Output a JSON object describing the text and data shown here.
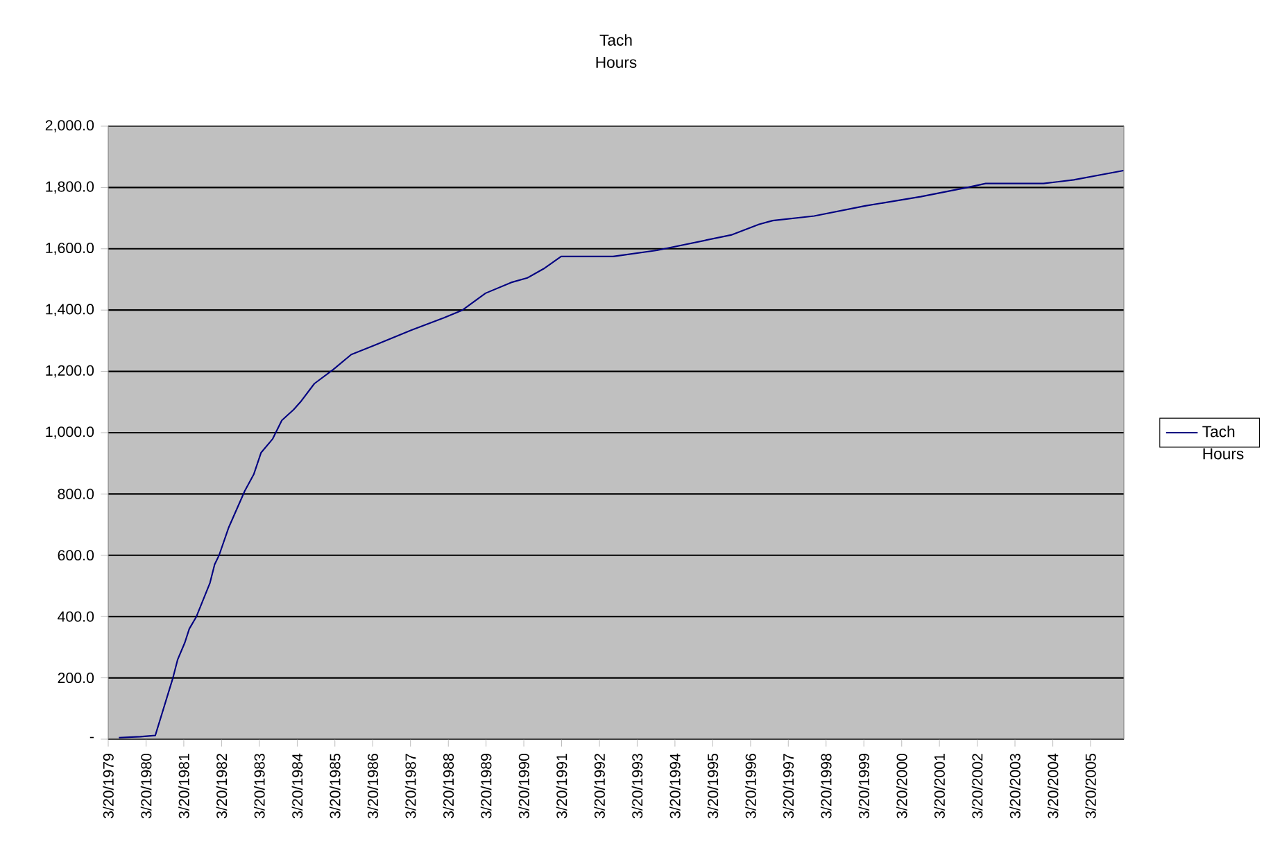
{
  "chart_data": {
    "type": "line",
    "title": "Tach Hours",
    "x": [
      "1979-07-01",
      "1980-01-25",
      "1980-06-17",
      "1980-12-05",
      "1981-01-20",
      "1981-03-30",
      "1981-05-12",
      "1981-07-20",
      "1981-11-28",
      "1982-01-12",
      "1982-02-24",
      "1982-05-27",
      "1982-10-30",
      "1983-01-26",
      "1983-04-06",
      "1983-07-27",
      "1983-10-23",
      "1984-02-14",
      "1984-04-20",
      "1984-09-02",
      "1985-02-28",
      "1985-08-25",
      "1986-04-05",
      "1987-03-30",
      "1988-02-07",
      "1988-08-04",
      "1989-03-15",
      "1989-11-17",
      "1990-04-23",
      "1990-09-28",
      "1991-03-15",
      "1992-07-30",
      "1993-09-27",
      "1994-09-20",
      "1995-09-13",
      "1996-06-10",
      "1996-10-20",
      "1997-11-25",
      "1999-04-02",
      "2000-09-20",
      "2001-12-13",
      "2002-06-10",
      "2003-12-20",
      "2004-10-08",
      "2006-02-01"
    ],
    "series": [
      {
        "name": "Tach Hours",
        "color": "#000080",
        "values": [
          5,
          8,
          12,
          200,
          260,
          315,
          360,
          400,
          510,
          570,
          600,
          690,
          810,
          865,
          935,
          980,
          1040,
          1075,
          1100,
          1160,
          1205,
          1255,
          1285,
          1335,
          1375,
          1400,
          1455,
          1490,
          1505,
          1535,
          1575,
          1575,
          1595,
          1620,
          1645,
          1680,
          1692,
          1707,
          1740,
          1770,
          1800,
          1813,
          1813,
          1825,
          1855
        ]
      }
    ],
    "xlim": [
      "1979-03-20",
      "2006-02-05"
    ],
    "xticks": [
      {
        "value": "1979-03-20",
        "label": "3/20/1979"
      },
      {
        "value": "1980-03-20",
        "label": "3/20/1980"
      },
      {
        "value": "1981-03-20",
        "label": "3/20/1981"
      },
      {
        "value": "1982-03-20",
        "label": "3/20/1982"
      },
      {
        "value": "1983-03-20",
        "label": "3/20/1983"
      },
      {
        "value": "1984-03-20",
        "label": "3/20/1984"
      },
      {
        "value": "1985-03-20",
        "label": "3/20/1985"
      },
      {
        "value": "1986-03-20",
        "label": "3/20/1986"
      },
      {
        "value": "1987-03-20",
        "label": "3/20/1987"
      },
      {
        "value": "1988-03-20",
        "label": "3/20/1988"
      },
      {
        "value": "1989-03-20",
        "label": "3/20/1989"
      },
      {
        "value": "1990-03-20",
        "label": "3/20/1990"
      },
      {
        "value": "1991-03-20",
        "label": "3/20/1991"
      },
      {
        "value": "1992-03-20",
        "label": "3/20/1992"
      },
      {
        "value": "1993-03-20",
        "label": "3/20/1993"
      },
      {
        "value": "1994-03-20",
        "label": "3/20/1994"
      },
      {
        "value": "1995-03-20",
        "label": "3/20/1995"
      },
      {
        "value": "1996-03-20",
        "label": "3/20/1996"
      },
      {
        "value": "1997-03-20",
        "label": "3/20/1997"
      },
      {
        "value": "1998-03-20",
        "label": "3/20/1998"
      },
      {
        "value": "1999-03-20",
        "label": "3/20/1999"
      },
      {
        "value": "2000-03-20",
        "label": "3/20/2000"
      },
      {
        "value": "2001-03-20",
        "label": "3/20/2001"
      },
      {
        "value": "2002-03-20",
        "label": "3/20/2002"
      },
      {
        "value": "2003-03-20",
        "label": "3/20/2003"
      },
      {
        "value": "2004-03-20",
        "label": "3/20/2004"
      },
      {
        "value": "2005-03-20",
        "label": "3/20/2005"
      }
    ],
    "ylim": [
      0,
      2000
    ],
    "yticks": [
      {
        "value": 0,
        "label": "-"
      },
      {
        "value": 200,
        "label": "200.0"
      },
      {
        "value": 400,
        "label": "400.0"
      },
      {
        "value": 600,
        "label": "600.0"
      },
      {
        "value": 800,
        "label": "800.0"
      },
      {
        "value": 1000,
        "label": "1,000.0"
      },
      {
        "value": 1200,
        "label": "1,200.0"
      },
      {
        "value": 1400,
        "label": "1,400.0"
      },
      {
        "value": 1600,
        "label": "1,600.0"
      },
      {
        "value": 1800,
        "label": "1,800.0"
      },
      {
        "value": 2000,
        "label": "2,000.0"
      }
    ],
    "grid": "y",
    "legend": "right"
  }
}
